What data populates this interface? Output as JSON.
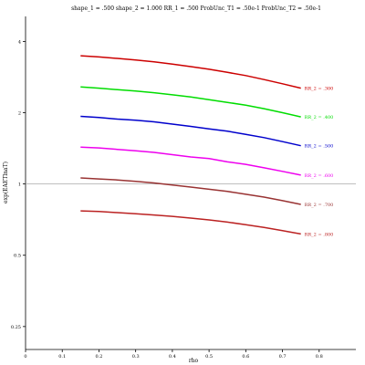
{
  "chart_data": {
    "type": "line",
    "title": "shape_1 = .500  shape_2 = 1.000  RR_1 = .500  ProbUnc_T1 = .50e-1  ProbUnc_T2 = .50e-1",
    "xlabel": "rho",
    "ylabel": "exp(EAETlnaT)",
    "xlim": [
      0,
      0.9
    ],
    "ylim": [
      0.2,
      5.1
    ],
    "yscale": "log",
    "x_ticks": [
      "0",
      "0.1",
      "0.2",
      "0.3",
      "0.4",
      "0.5",
      "0.6",
      "0.7",
      "0.8"
    ],
    "y_ticks": [
      {
        "value": 4,
        "label": "4"
      },
      {
        "value": 2,
        "label": "2"
      },
      {
        "value": 1,
        "label": "1"
      },
      {
        "value": 0.5,
        "label": "0.5"
      },
      {
        "value": 0.25,
        "label": "0.25"
      }
    ],
    "reference_line": {
      "y": 1,
      "color": "#aaaaaa"
    },
    "x": [
      0.15,
      0.2,
      0.25,
      0.3,
      0.35,
      0.4,
      0.45,
      0.5,
      0.55,
      0.6,
      0.65,
      0.7,
      0.75
    ],
    "series": [
      {
        "name": "RR_2 = .300",
        "color": "#cc0000",
        "values": [
          3.48,
          3.44,
          3.39,
          3.34,
          3.28,
          3.21,
          3.13,
          3.05,
          2.96,
          2.87,
          2.76,
          2.65,
          2.54
        ]
      },
      {
        "name": "RR_2 = .400",
        "color": "#00dd00",
        "values": [
          2.57,
          2.54,
          2.5,
          2.47,
          2.43,
          2.38,
          2.33,
          2.27,
          2.21,
          2.15,
          2.08,
          2.0,
          1.92
        ]
      },
      {
        "name": "RR_2 = .500",
        "color": "#0000cc",
        "values": [
          1.93,
          1.91,
          1.88,
          1.86,
          1.83,
          1.79,
          1.75,
          1.71,
          1.67,
          1.62,
          1.57,
          1.51,
          1.45
        ]
      },
      {
        "name": "RR_2 = .600",
        "color": "#ee00ee",
        "values": [
          1.43,
          1.42,
          1.4,
          1.38,
          1.36,
          1.33,
          1.3,
          1.28,
          1.24,
          1.21,
          1.17,
          1.13,
          1.09
        ]
      },
      {
        "name": "RR_2 = .700",
        "color": "#993333",
        "values": [
          1.06,
          1.05,
          1.04,
          1.025,
          1.01,
          0.99,
          0.97,
          0.95,
          0.93,
          0.905,
          0.88,
          0.85,
          0.82
        ]
      },
      {
        "name": "RR_2 = .800",
        "color": "#bb2222",
        "values": [
          0.77,
          0.765,
          0.757,
          0.749,
          0.74,
          0.73,
          0.718,
          0.705,
          0.69,
          0.673,
          0.655,
          0.635,
          0.615
        ]
      }
    ]
  }
}
